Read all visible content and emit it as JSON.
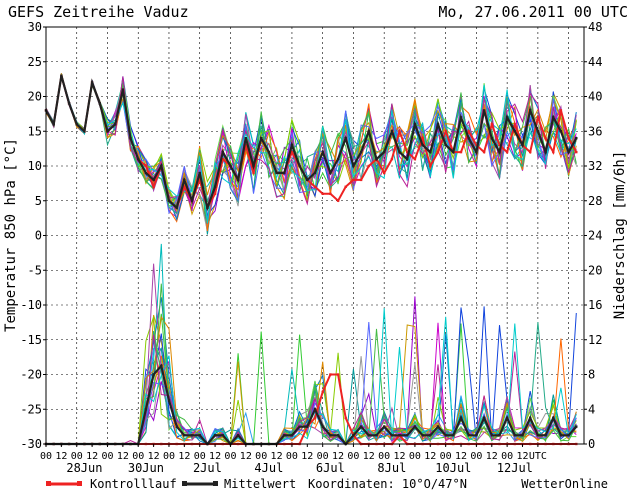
{
  "header": {
    "title": "GEFS Zeitreihe Vaduz",
    "date": "Mo, 27.06.2011 00 UTC"
  },
  "footer": {
    "control_label": "Kontrolllauf",
    "mean_label": "Mittelwert",
    "coords": "Koordinaten: 10°O/47°N",
    "brand": "WetterOnline"
  },
  "colors": {
    "control": "#ee2222",
    "mean": "#222222",
    "members": [
      "#2a9df4",
      "#33cc33",
      "#9900cc",
      "#00bbbb",
      "#cc9900",
      "#1144dd",
      "#66dd44",
      "#cc00cc",
      "#009999",
      "#999999",
      "#ff6600",
      "#0077cc",
      "#88cc00",
      "#aa44aa",
      "#22aa88",
      "#dd8800",
      "#5566ff",
      "#44bb44",
      "#bb2299",
      "#00cccc"
    ]
  },
  "chart_data": {
    "type": "line",
    "ylabel_left": "Temperatur 850 hPa [°C]",
    "ylabel_right": "Niederschlag [mm/6h]",
    "y_left_ticks": [
      "30",
      "25",
      "20",
      "15",
      "10",
      "5",
      "0",
      "-5",
      "-10",
      "-15",
      "-20",
      "-25",
      "-30"
    ],
    "y_right_ticks": [
      "48",
      "44",
      "40",
      "36",
      "32",
      "28",
      "24",
      "20",
      "16",
      "12",
      "8",
      "4",
      "0"
    ],
    "ylim_left": [
      -30,
      30
    ],
    "ylim_right": [
      0,
      48
    ],
    "x_hour_ticks": [
      "00",
      "12",
      "00",
      "12",
      "00",
      "12",
      "00",
      "12",
      "00",
      "12",
      "00",
      "12",
      "00",
      "12",
      "00",
      "12",
      "00",
      "12",
      "00",
      "12",
      "00",
      "12",
      "00",
      "12",
      "00",
      "12",
      "00",
      "12",
      "00",
      "12",
      "00",
      "12",
      "UTC"
    ],
    "x_date_ticks": [
      "28Jun",
      "30Jun",
      "2Jul",
      "4Jul",
      "6Jul",
      "8Jul",
      "10Jul",
      "12Jul"
    ],
    "time_unit": "6-hourly steps from 27.06.2011 00 UTC",
    "grid": true,
    "series": [
      {
        "name": "Kontrolllauf",
        "axis": "left",
        "values": [
          18,
          16,
          23,
          19,
          16,
          15,
          22,
          19,
          15,
          16,
          21,
          14,
          11,
          10,
          7,
          10,
          5,
          4,
          7,
          5,
          8,
          4,
          6,
          11,
          10,
          8,
          13,
          9,
          14,
          12,
          9,
          9,
          12,
          10,
          8,
          7,
          6,
          6,
          5,
          7,
          8,
          8,
          10,
          11,
          9,
          11,
          15,
          12,
          11,
          14,
          10,
          12,
          15,
          12,
          12,
          15,
          13,
          12,
          16,
          13,
          12,
          16,
          13,
          12,
          17,
          14,
          12,
          18,
          14,
          12
        ]
      },
      {
        "name": "Mittelwert",
        "axis": "left",
        "values": [
          18,
          16,
          23,
          19,
          16,
          15,
          22,
          19,
          15,
          16,
          21,
          14,
          11,
          9,
          8,
          10,
          5,
          4,
          8,
          5,
          9,
          4,
          7,
          12,
          10,
          8,
          14,
          10,
          14,
          12,
          9,
          9,
          13,
          10,
          8,
          9,
          12,
          9,
          11,
          14,
          10,
          12,
          15,
          11,
          12,
          15,
          12,
          11,
          16,
          13,
          12,
          16,
          13,
          12,
          17,
          14,
          12,
          18,
          14,
          12,
          17,
          15,
          13,
          18,
          15,
          12,
          17,
          15,
          12,
          14
        ]
      },
      {
        "name": "Kontrolllauf",
        "axis": "right",
        "values": [
          0,
          0,
          0,
          0,
          0,
          0,
          0,
          0,
          0,
          0,
          0,
          0,
          0,
          0,
          0,
          0,
          0,
          0,
          0,
          0,
          0,
          0,
          0,
          0,
          0,
          0,
          0,
          0,
          0,
          0,
          0,
          0,
          0,
          0,
          2,
          3,
          6,
          8,
          8,
          3,
          1,
          0,
          0,
          0,
          0,
          0,
          1,
          0,
          0,
          0,
          0,
          0,
          0,
          0,
          0,
          0,
          0,
          0,
          0,
          0,
          0,
          0,
          0,
          0,
          0,
          0,
          0,
          0,
          0,
          0
        ]
      },
      {
        "name": "Mittelwert",
        "axis": "right",
        "values": [
          0,
          0,
          0,
          0,
          0,
          0,
          0,
          0,
          0,
          0,
          0,
          0,
          0,
          4,
          8,
          9,
          5,
          2,
          1,
          1,
          1,
          0,
          1,
          1,
          0,
          1,
          0,
          0,
          0,
          0,
          0,
          1,
          1,
          2,
          2,
          4,
          2,
          1,
          1,
          0,
          1,
          2,
          1,
          1,
          2,
          1,
          1,
          1,
          2,
          1,
          1,
          2,
          1,
          1,
          3,
          1,
          1,
          3,
          1,
          1,
          3,
          1,
          1,
          3,
          1,
          1,
          3,
          1,
          1,
          2
        ]
      }
    ]
  }
}
